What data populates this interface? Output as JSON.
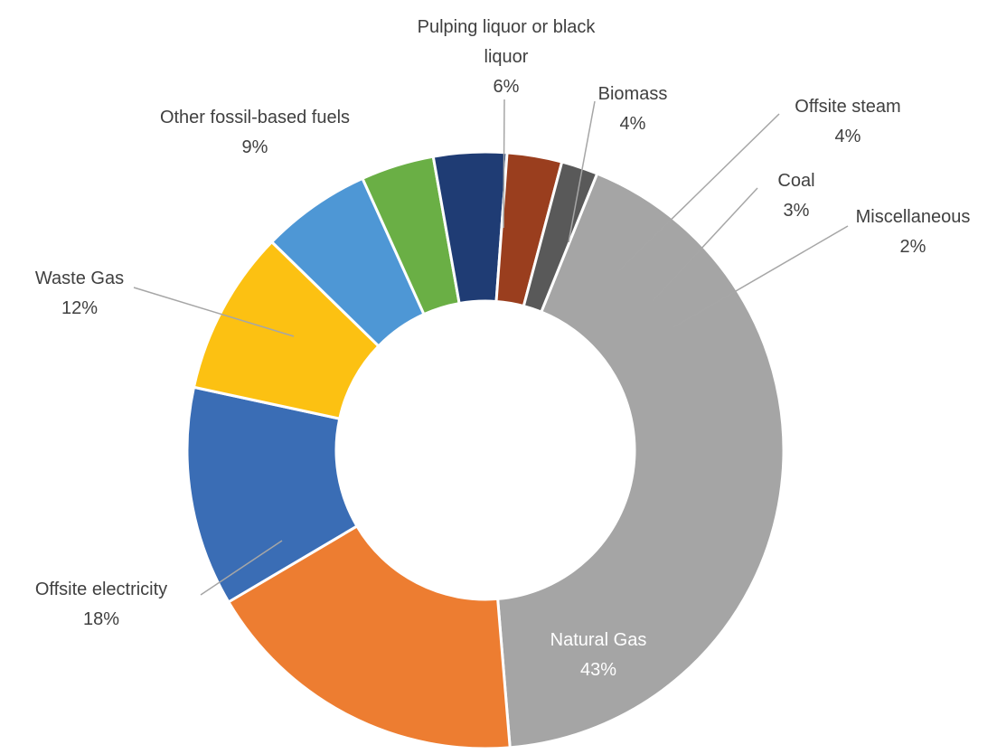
{
  "chart_data": {
    "type": "pie",
    "variant": "donut",
    "title": "",
    "slices": [
      {
        "name": "Natural Gas",
        "value": 43,
        "label_lines": [
          "Natural Gas",
          "43%"
        ],
        "color": "#A5A5A5"
      },
      {
        "name": "Offsite electricity",
        "value": 18,
        "label_lines": [
          "Offsite electricity",
          "18%"
        ],
        "color": "#ED7D31"
      },
      {
        "name": "Waste Gas",
        "value": 12,
        "label_lines": [
          "Waste Gas",
          "12%"
        ],
        "color": "#3A6DB5"
      },
      {
        "name": "Other fossil-based fuels",
        "value": 9,
        "label_lines": [
          "Other fossil-based fuels",
          "9%"
        ],
        "color": "#FCC112"
      },
      {
        "name": "Pulping liquor or black liquor",
        "value": 6,
        "label_lines": [
          "Pulping liquor or black",
          "liquor",
          "6%"
        ],
        "color": "#4E97D5"
      },
      {
        "name": "Biomass",
        "value": 4,
        "label_lines": [
          "Biomass",
          "4%"
        ],
        "color": "#6AAF45"
      },
      {
        "name": "Offsite steam",
        "value": 4,
        "label_lines": [
          "Offsite steam",
          "4%"
        ],
        "color": "#1F3C74"
      },
      {
        "name": "Coal",
        "value": 3,
        "label_lines": [
          "Coal",
          "3%"
        ],
        "color": "#9A3E1E"
      },
      {
        "name": "Miscellaneous",
        "value": 2,
        "label_lines": [
          "Miscellaneous",
          "2%"
        ],
        "color": "#595959"
      }
    ],
    "legend": "none",
    "data_labels": "category name and percentage"
  }
}
